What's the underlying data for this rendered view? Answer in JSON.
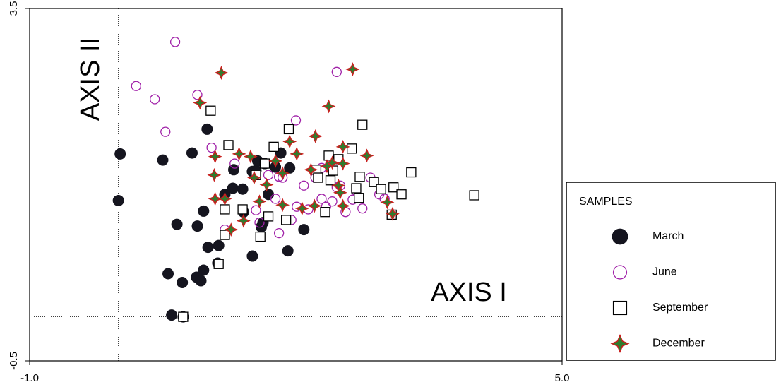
{
  "chart_data": {
    "type": "scatter",
    "x_label": "AXIS I",
    "y_label": "AXIS II",
    "xlim": [
      -1,
      5
    ],
    "ylim": [
      -0.5,
      3.5
    ],
    "xticks": [
      {
        "value": -1,
        "label": "-1.0"
      },
      {
        "value": 5,
        "label": "5.0"
      }
    ],
    "yticks": [
      -0.5,
      3.5
    ],
    "zero_lines": true,
    "legend": "right",
    "legend_title": "SAMPLES",
    "series": [
      {
        "name": "March",
        "marker": "filled-circle",
        "color": "#15151f",
        "x": [
          0.02,
          0.0,
          0.5,
          0.83,
          1.0,
          0.66,
          0.89,
          0.96,
          1.01,
          1.13,
          0.56,
          0.72,
          0.88,
          0.93,
          0.96,
          0.6,
          0.73,
          1.12,
          1.2,
          1.29,
          1.4,
          1.41,
          1.3,
          1.51,
          1.55,
          1.57,
          1.65,
          1.69,
          1.63,
          1.61,
          1.51,
          1.77,
          1.83,
          1.93,
          1.91,
          2.09
        ],
        "values": [
          1.85,
          1.32,
          1.78,
          1.86,
          2.13,
          1.05,
          1.03,
          1.2,
          0.79,
          0.81,
          0.49,
          0.39,
          0.45,
          0.41,
          0.53,
          0.02,
          0.0,
          0.61,
          1.39,
          1.46,
          1.45,
          1.19,
          1.67,
          1.65,
          1.66,
          1.77,
          1.74,
          1.39,
          1.07,
          1.02,
          0.69,
          1.7,
          1.86,
          1.69,
          0.75,
          0.99
        ]
      },
      {
        "name": "June",
        "marker": "circle",
        "color": "#a020a8",
        "x": [
          0.64,
          0.2,
          0.41,
          0.89,
          0.53,
          1.05,
          1.31,
          2.0,
          2.46,
          1.2,
          1.59,
          1.81,
          1.77,
          1.69,
          1.81,
          1.85,
          1.95,
          2.01,
          2.09,
          2.14,
          2.22,
          2.29,
          2.34,
          2.29,
          2.46,
          2.5,
          2.41,
          2.56,
          2.64,
          2.75,
          2.84,
          2.94,
          3.0,
          2.68,
          1.55
        ],
        "values": [
          3.12,
          2.62,
          2.47,
          2.52,
          2.1,
          1.92,
          1.74,
          2.23,
          2.78,
          0.99,
          1.07,
          0.95,
          1.34,
          1.61,
          1.59,
          1.58,
          1.1,
          1.25,
          1.49,
          1.22,
          1.58,
          1.34,
          1.25,
          1.69,
          1.47,
          1.49,
          1.31,
          1.19,
          1.33,
          1.23,
          1.58,
          1.39,
          1.34,
          1.43,
          1.21
        ]
      },
      {
        "name": "September",
        "marker": "square",
        "color": "#000000",
        "x": [
          1.04,
          1.24,
          1.75,
          1.92,
          2.75,
          1.2,
          1.4,
          1.2,
          1.13,
          1.6,
          1.69,
          1.89,
          1.55,
          1.65,
          2.23,
          2.25,
          2.37,
          2.39,
          2.42,
          2.48,
          2.63,
          2.72,
          2.71,
          2.68,
          2.88,
          2.96,
          3.1,
          3.19,
          3.3,
          3.08,
          4.01,
          2.33,
          0.73
        ],
        "values": [
          2.34,
          1.95,
          1.93,
          2.13,
          2.18,
          1.22,
          1.22,
          0.93,
          0.6,
          0.91,
          1.14,
          1.1,
          1.61,
          1.74,
          1.67,
          1.58,
          1.83,
          1.55,
          1.66,
          1.79,
          1.91,
          1.59,
          1.35,
          1.46,
          1.53,
          1.45,
          1.47,
          1.39,
          1.64,
          1.16,
          1.38,
          1.19,
          0.0
        ]
      },
      {
        "name": "December",
        "marker": "star",
        "color": "#2e7d2e",
        "edge_color": "#c8201e",
        "x": [
          1.16,
          0.92,
          1.09,
          1.08,
          1.09,
          1.2,
          1.27,
          1.41,
          1.36,
          1.49,
          1.53,
          1.59,
          1.67,
          1.77,
          1.85,
          1.93,
          2.01,
          1.85,
          2.07,
          2.22,
          2.37,
          2.41,
          2.35,
          2.53,
          2.53,
          2.48,
          2.5,
          2.53,
          2.64,
          2.8,
          3.03,
          3.09,
          2.21,
          2.17
        ],
        "values": [
          2.77,
          2.43,
          1.82,
          1.61,
          1.34,
          1.34,
          0.99,
          1.09,
          1.85,
          1.82,
          1.58,
          1.31,
          1.5,
          1.77,
          1.63,
          1.99,
          1.85,
          1.27,
          1.23,
          2.05,
          2.39,
          1.75,
          1.71,
          1.93,
          1.74,
          1.49,
          1.41,
          1.26,
          2.81,
          1.83,
          1.3,
          1.17,
          1.26,
          1.67
        ]
      }
    ]
  }
}
